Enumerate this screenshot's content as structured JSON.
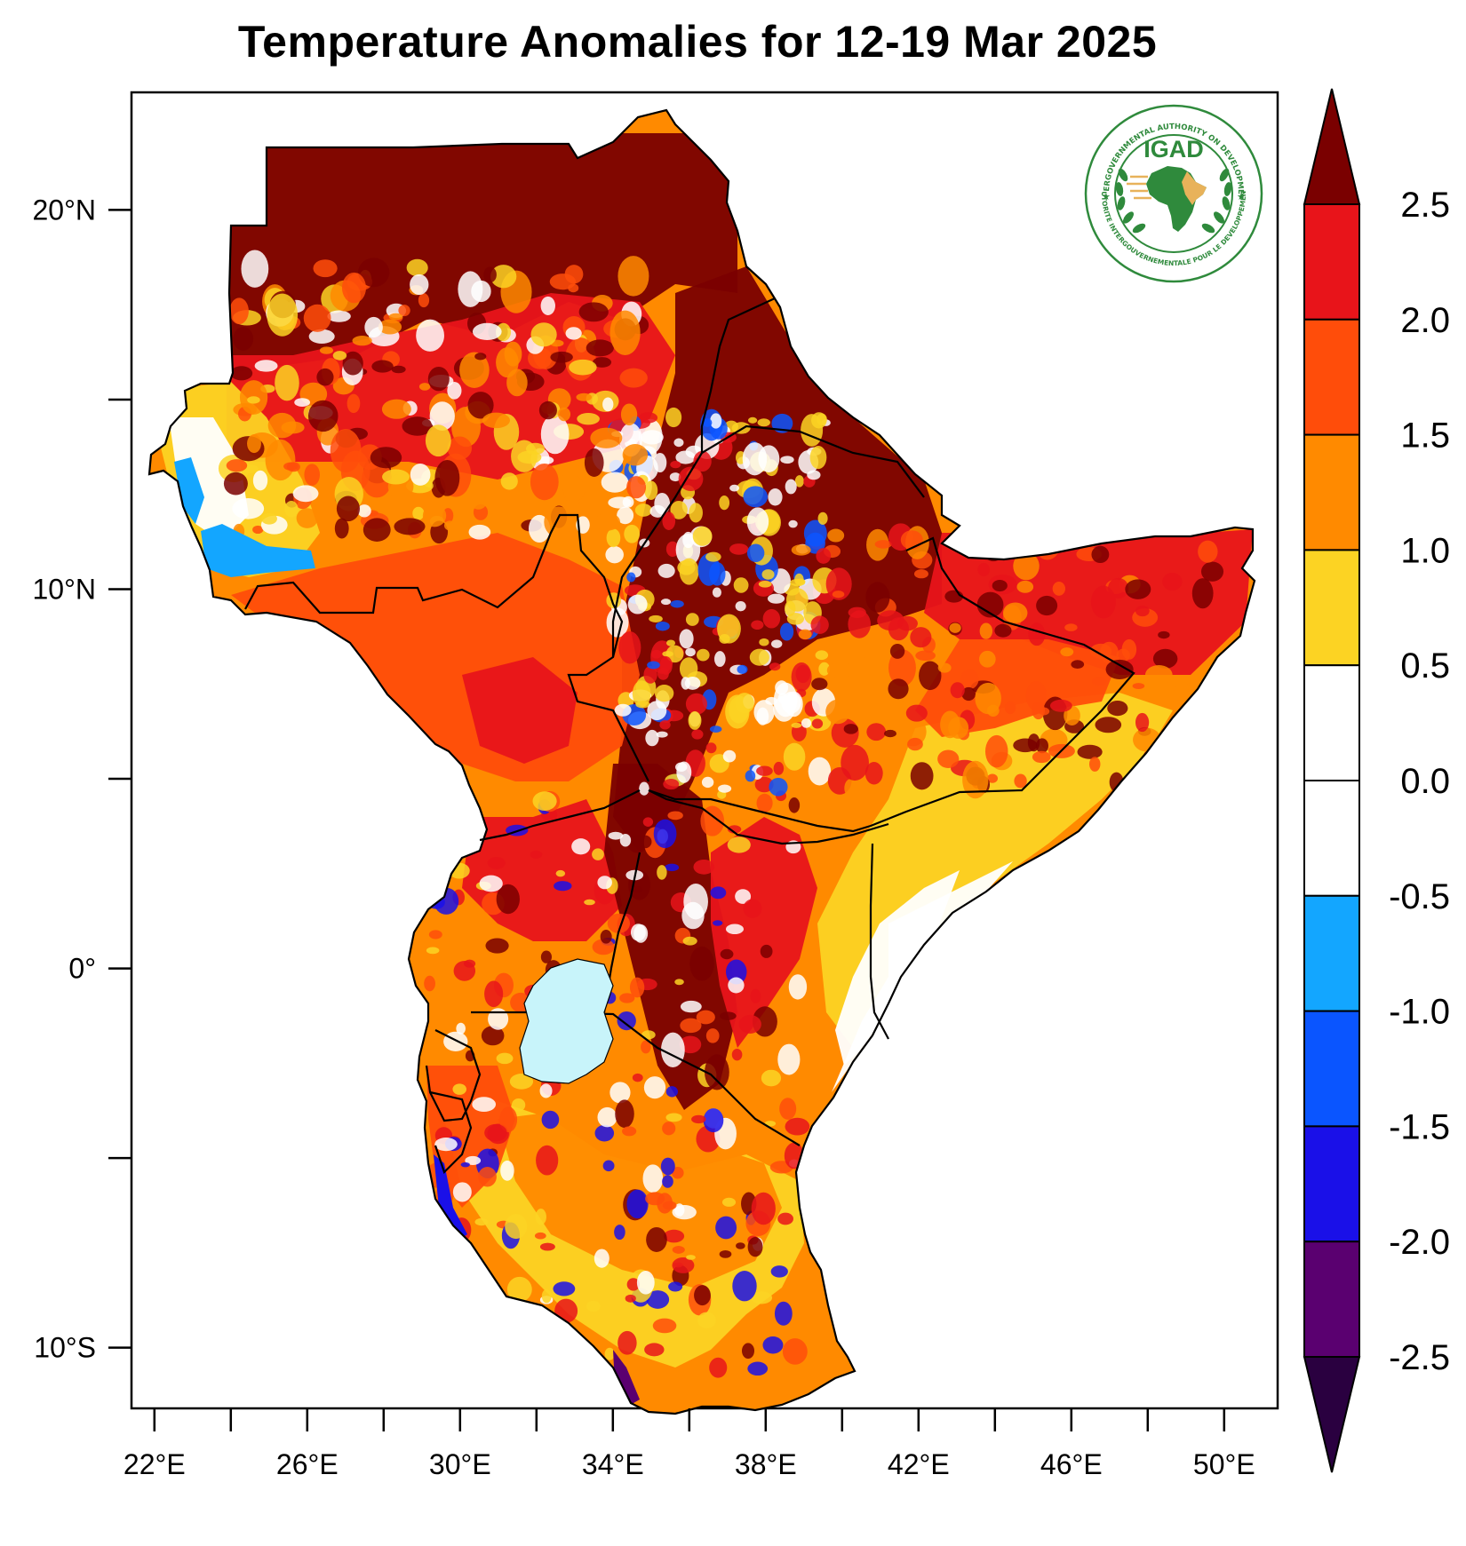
{
  "title": "Temperature Anomalies for 12-19 Mar 2025",
  "map": {
    "region": "Greater Horn of Africa",
    "lon_range": [
      21.4,
      51.4
    ],
    "lat_range": [
      -11.6,
      23.1
    ],
    "lat_ticks": [
      {
        "value": 20,
        "label": "20°N"
      },
      {
        "value": 15,
        "label": ""
      },
      {
        "value": 10,
        "label": "10°N"
      },
      {
        "value": 5,
        "label": ""
      },
      {
        "value": 0,
        "label": "0°"
      },
      {
        "value": -5,
        "label": ""
      },
      {
        "value": -10,
        "label": "10°S"
      }
    ],
    "lon_ticks": [
      {
        "value": 22,
        "label": "22°E"
      },
      {
        "value": 24,
        "label": ""
      },
      {
        "value": 26,
        "label": "26°E"
      },
      {
        "value": 28,
        "label": ""
      },
      {
        "value": 30,
        "label": "30°E"
      },
      {
        "value": 32,
        "label": ""
      },
      {
        "value": 34,
        "label": "34°E"
      },
      {
        "value": 36,
        "label": ""
      },
      {
        "value": 38,
        "label": "38°E"
      },
      {
        "value": 40,
        "label": ""
      },
      {
        "value": 42,
        "label": "42°E"
      },
      {
        "value": 44,
        "label": ""
      },
      {
        "value": 46,
        "label": "46°E"
      },
      {
        "value": 48,
        "label": ""
      },
      {
        "value": 50,
        "label": "50°E"
      }
    ],
    "lake_color": "#c8f4fa"
  },
  "colorbar": {
    "levels": [
      "2.5",
      "2.0",
      "1.5",
      "1.0",
      "0.5",
      "0.0",
      "-0.5",
      "-1.0",
      "-1.5",
      "-2.0",
      "-2.5"
    ],
    "top_arrow_color": "#7a0000",
    "bottom_arrow_color": "#2a0040",
    "bin_colors": [
      "#e8141a",
      "#ff4d0a",
      "#ff8a00",
      "#fcd323",
      "#ffffff",
      "#ffffff",
      "#13a6ff",
      "#0a55ff",
      "#1a10e8",
      "#5a0070"
    ]
  },
  "logo": {
    "acronym": "IGAD",
    "ring_text_top": "INTERGOVERNMENTAL AUTHORITY ON DEVELOPMENT",
    "ring_text_bottom": "AUTORITE INTERGOUVERNEMENTALE POUR LE DEVELOPPEMENT"
  }
}
